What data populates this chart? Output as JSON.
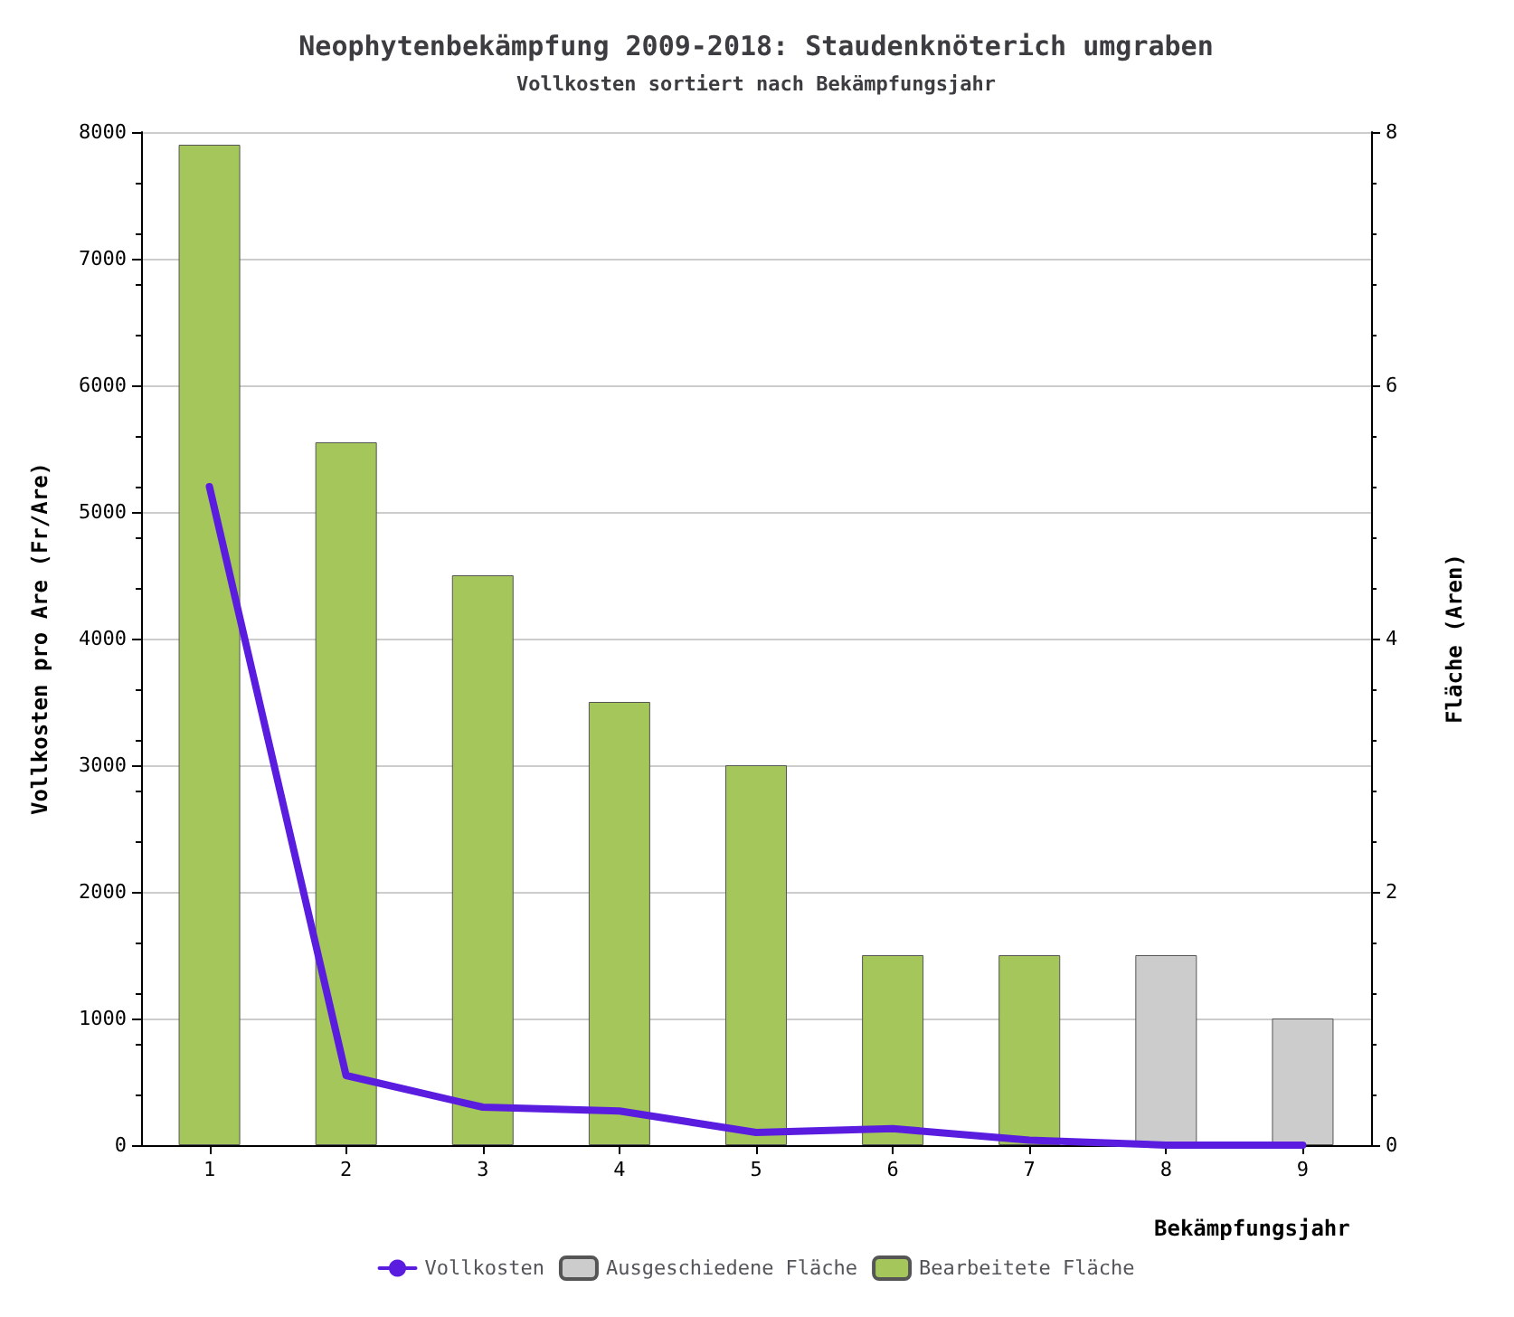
{
  "chart_data": {
    "type": "bar",
    "title": "Neophytenbekämpfung 2009-2018: Staudenknöterich umgraben",
    "subtitle": "Vollkosten sortiert nach Bekämpfungsjahr",
    "xlabel": "Bekämpfungsjahr",
    "ylabel": "Vollkosten pro Are (Fr/Are)",
    "y2label": "Fläche (Aren)",
    "categories": [
      "1",
      "2",
      "3",
      "4",
      "5",
      "6",
      "7",
      "8",
      "9"
    ],
    "stacked": true,
    "series": [
      {
        "name": "Vollkosten",
        "type": "line",
        "color": "#5a1de0",
        "values": [
          5200,
          550,
          300,
          270,
          100,
          130,
          40,
          0,
          0
        ]
      },
      {
        "name": "Ausgeschiedene Fläche",
        "color": "#cccccc",
        "axis": "y2",
        "values": [
          null,
          null,
          null,
          null,
          null,
          null,
          null,
          1.5,
          1
        ]
      },
      {
        "name": "Bearbeitete Fläche",
        "color": "#a4c65a",
        "axis": "y2",
        "values": [
          7.9,
          5.55,
          4.5,
          3.5,
          3,
          1.5,
          1.5,
          null,
          null
        ]
      }
    ],
    "ylim": [
      0,
      8000
    ],
    "yticks": [
      0,
      1000,
      2000,
      3000,
      4000,
      5000,
      6000,
      7000,
      8000
    ],
    "y2lim": [
      0,
      8
    ],
    "y2ticks": [
      0,
      2,
      4,
      6,
      8
    ],
    "grid": "y",
    "legend": "bottom",
    "line_style": "solid"
  }
}
